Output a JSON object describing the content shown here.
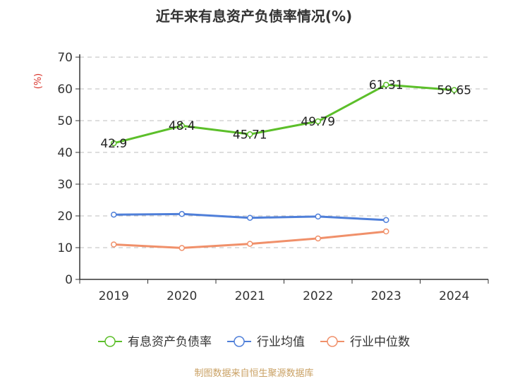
{
  "chart_data": {
    "type": "line",
    "title": "近年来有息资产负债率情况(%)",
    "ylabel": "(%)",
    "categories": [
      "2019",
      "2020",
      "2021",
      "2022",
      "2023",
      "2024"
    ],
    "yticks": [
      0,
      10,
      20,
      30,
      40,
      50,
      60,
      70
    ],
    "ylim": [
      0,
      70
    ],
    "grid": true,
    "legend_position": "bottom",
    "series": [
      {
        "name": "有息资产负债率",
        "color": "#5cbf2a",
        "values": [
          42.9,
          48.4,
          45.71,
          49.79,
          61.31,
          59.65
        ],
        "labels": [
          "42.9",
          "48.4",
          "45.71",
          "49.79",
          "61.31",
          "59.65"
        ]
      },
      {
        "name": "行业均值",
        "color": "#4f7fd9",
        "values": [
          20.4,
          20.6,
          19.4,
          19.8,
          18.7,
          null
        ]
      },
      {
        "name": "行业中位数",
        "color": "#f0906a",
        "values": [
          11.0,
          9.9,
          11.2,
          12.9,
          15.1,
          null
        ]
      }
    ],
    "source": "制图数据来自恒生聚源数据库"
  }
}
